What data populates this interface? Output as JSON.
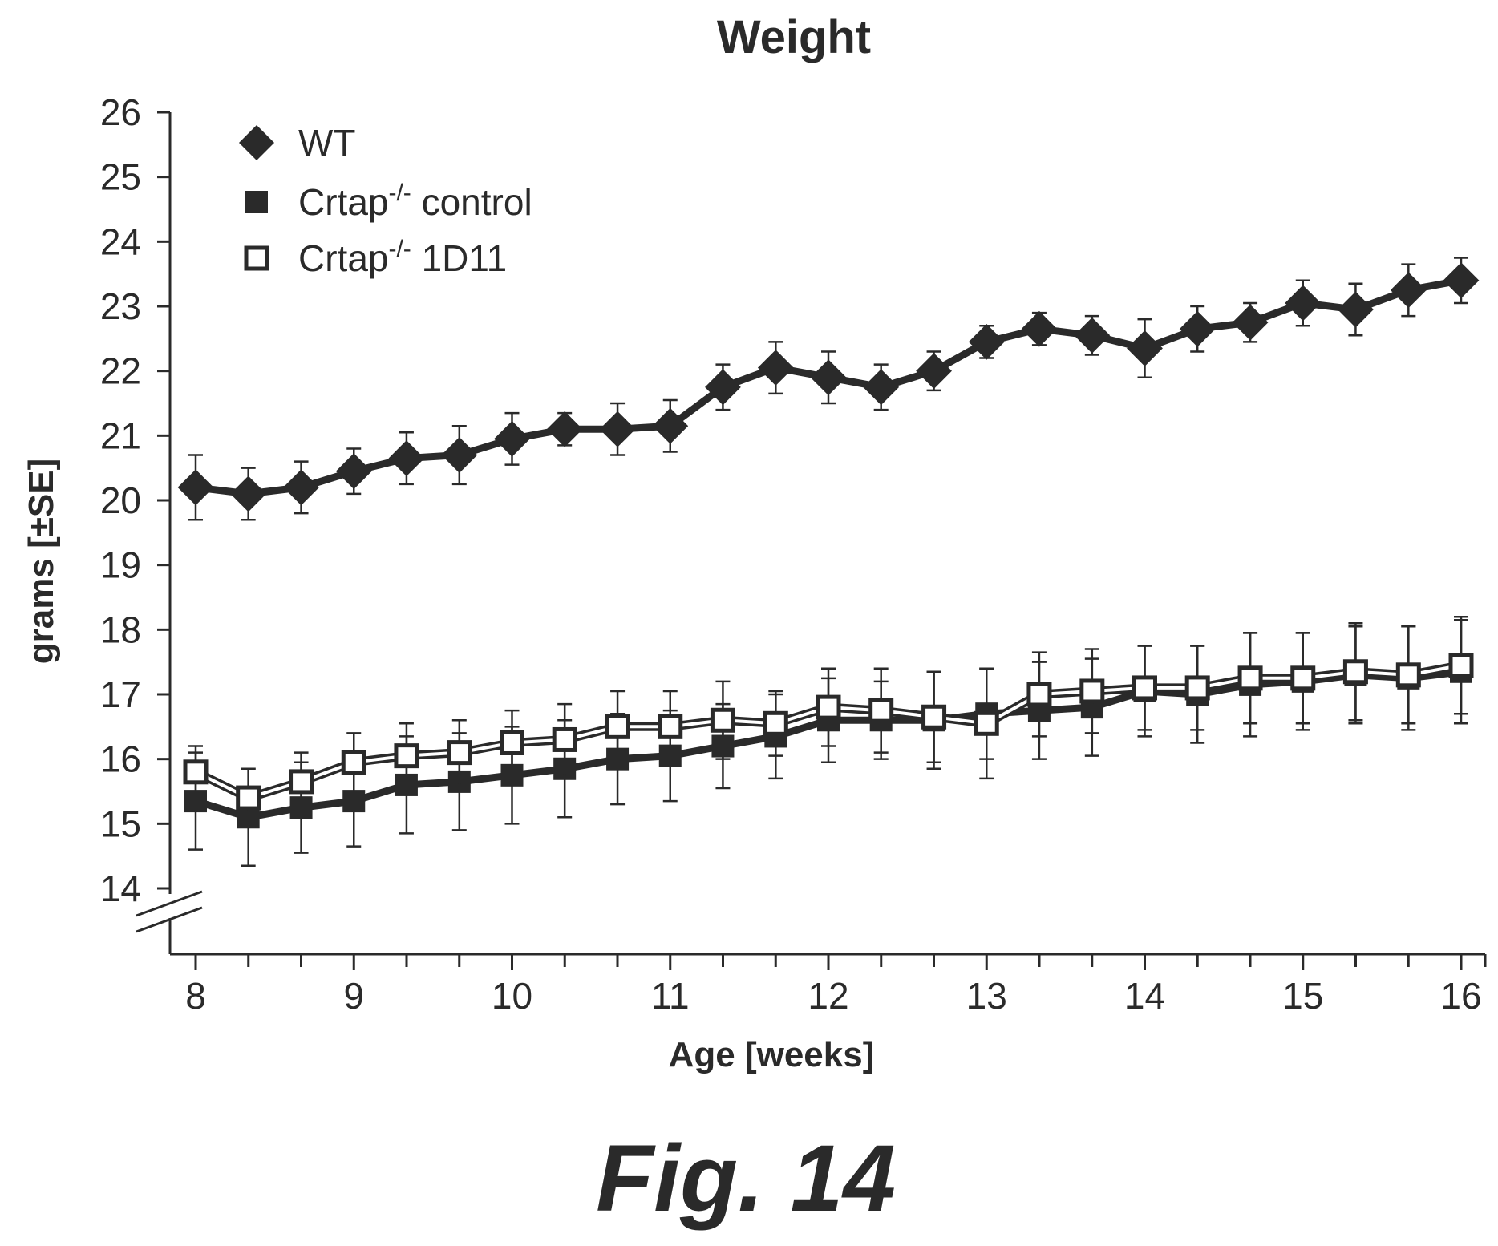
{
  "figure_label": "Fig. 14",
  "chart_data": {
    "type": "line",
    "title": "Weight",
    "xlabel": "Age [weeks]",
    "ylabel": "grams [±SE]",
    "xlim": [
      8,
      16
    ],
    "ylim": [
      14,
      26
    ],
    "y_axis_break": true,
    "x_ticks": [
      8,
      9,
      10,
      11,
      12,
      13,
      14,
      15,
      16
    ],
    "y_ticks": [
      14,
      15,
      16,
      17,
      18,
      19,
      20,
      21,
      22,
      23,
      24,
      25,
      26
    ],
    "legend_position": "top-left",
    "x": [
      8,
      8.333,
      8.667,
      9,
      9.333,
      9.667,
      10,
      10.333,
      10.667,
      11,
      11.333,
      11.667,
      12,
      12.333,
      12.667,
      13,
      13.333,
      13.667,
      14,
      14.333,
      14.667,
      15,
      15.333,
      15.667,
      16
    ],
    "series": [
      {
        "name": "WT",
        "marker": "diamond-filled",
        "color": "#2a2a2a",
        "values": [
          20.2,
          20.1,
          20.2,
          20.45,
          20.65,
          20.7,
          20.95,
          21.1,
          21.1,
          21.15,
          21.75,
          22.05,
          21.9,
          21.75,
          22.0,
          22.45,
          22.65,
          22.55,
          22.35,
          22.65,
          22.75,
          23.05,
          22.95,
          23.25,
          23.4
        ],
        "errors": [
          0.5,
          0.4,
          0.4,
          0.35,
          0.4,
          0.45,
          0.4,
          0.25,
          0.4,
          0.4,
          0.35,
          0.4,
          0.4,
          0.35,
          0.3,
          0.25,
          0.25,
          0.3,
          0.45,
          0.35,
          0.3,
          0.35,
          0.4,
          0.4,
          0.35
        ]
      },
      {
        "name": "Crtap-/- control",
        "name_base": "Crtap",
        "name_sup": "-/-",
        "name_rest": " control",
        "marker": "square-filled",
        "color": "#2a2a2a",
        "values": [
          15.35,
          15.1,
          15.25,
          15.35,
          15.6,
          15.65,
          15.75,
          15.85,
          16.0,
          16.05,
          16.2,
          16.35,
          16.6,
          16.6,
          16.6,
          16.7,
          16.75,
          16.8,
          17.05,
          17.0,
          17.15,
          17.2,
          17.3,
          17.25,
          17.35
        ],
        "errors": [
          0.75,
          0.75,
          0.7,
          0.7,
          0.75,
          0.75,
          0.75,
          0.75,
          0.7,
          0.7,
          0.65,
          0.65,
          0.65,
          0.6,
          0.75,
          0.7,
          0.75,
          0.75,
          0.7,
          0.75,
          0.8,
          0.75,
          0.75,
          0.8,
          0.8
        ]
      },
      {
        "name": "Crtap-/- 1D11",
        "name_base": "Crtap",
        "name_sup": "-/-",
        "name_rest": " 1D11",
        "marker": "square-open",
        "color": "#2a2a2a",
        "values": [
          15.8,
          15.4,
          15.65,
          15.95,
          16.05,
          16.1,
          16.25,
          16.3,
          16.5,
          16.5,
          16.6,
          16.55,
          16.8,
          16.75,
          16.65,
          16.55,
          17.0,
          17.05,
          17.1,
          17.1,
          17.25,
          17.25,
          17.35,
          17.3,
          17.45
        ],
        "errors": [
          0.4,
          0.45,
          0.45,
          0.45,
          0.5,
          0.5,
          0.5,
          0.55,
          0.55,
          0.55,
          0.6,
          0.5,
          0.6,
          0.65,
          0.7,
          0.85,
          0.65,
          0.65,
          0.65,
          0.65,
          0.7,
          0.7,
          0.75,
          0.75,
          0.75
        ]
      }
    ]
  }
}
